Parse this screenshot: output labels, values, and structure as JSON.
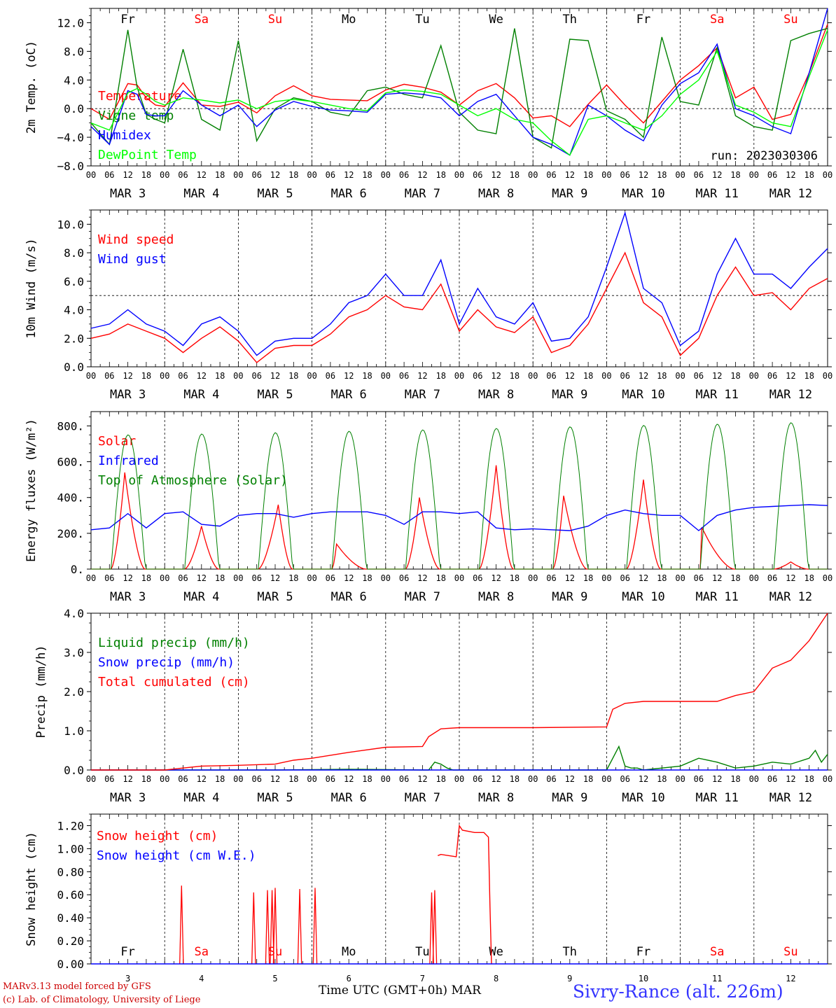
{
  "footer": {
    "credit_line1": "MARv3.13 model forced by GFS",
    "credit_line2": "(c) Lab. of Climatology, University of Liege",
    "xaxis_label": "Time UTC (GMT+0h) MAR",
    "station": "Sivry-Rance (alt. 226m)",
    "colors": {
      "credit": "#cc0000",
      "station": "#3333ff"
    }
  },
  "days": {
    "names": [
      "Fr",
      "Sa",
      "Su",
      "Mo",
      "Tu",
      "We",
      "Th",
      "Fr",
      "Sa",
      "Su"
    ],
    "weekend": [
      false,
      true,
      true,
      false,
      false,
      false,
      false,
      false,
      true,
      true
    ],
    "dates": [
      "MAR  3",
      "MAR  4",
      "MAR  5",
      "MAR  6",
      "MAR  7",
      "MAR  8",
      "MAR  9",
      "MAR 10",
      "MAR 11",
      "MAR 12"
    ],
    "day_numbers": [
      "3",
      "4",
      "5",
      "6",
      "7",
      "8",
      "9",
      "10",
      "11",
      "12"
    ],
    "hour_ticks": [
      "00",
      "06",
      "12",
      "18"
    ],
    "final_tick": "00"
  },
  "chart_data": [
    {
      "type": "line",
      "ylabel": "2m Temp. (oC)",
      "ylim": [
        -8,
        14
      ],
      "yticks": [
        "12.0",
        "8.0",
        "4.0",
        "0.0",
        "−4.0",
        "−8.0"
      ],
      "ytick_values": [
        12,
        8,
        4,
        0,
        -4,
        -8
      ],
      "reference_line": 0,
      "annotation": "run: 2023030306",
      "x_unit": "hours from 2023-03-03 00 UTC",
      "series": [
        {
          "name": "Temperature",
          "color": "#ff0000",
          "x": [
            0,
            6,
            12,
            15,
            18,
            21,
            24,
            30,
            36,
            42,
            48,
            54,
            60,
            66,
            72,
            78,
            84,
            90,
            96,
            102,
            108,
            114,
            120,
            126,
            132,
            138,
            144,
            150,
            156,
            162,
            168,
            174,
            180,
            186,
            192,
            198,
            204,
            210,
            216,
            222,
            228,
            234,
            240
          ],
          "y": [
            0.0,
            -1.5,
            3.5,
            3.3,
            1.5,
            0.5,
            0.3,
            3.6,
            0.5,
            0.3,
            0.9,
            -0.6,
            1.8,
            3.2,
            1.8,
            1.3,
            1.2,
            1.1,
            2.6,
            3.4,
            3.0,
            2.3,
            0.5,
            2.5,
            3.5,
            1.5,
            -1.3,
            -1.0,
            -2.5,
            0.6,
            3.3,
            0.5,
            -2.0,
            1.0,
            4.0,
            6.0,
            8.5,
            1.5,
            3.0,
            -1.5,
            -0.8,
            5.0,
            11.8
          ]
        },
        {
          "name": "Vigne temp",
          "color": "#008000",
          "x": [
            0,
            6,
            12,
            15,
            18,
            21,
            24,
            30,
            36,
            42,
            48,
            54,
            60,
            66,
            72,
            78,
            84,
            90,
            96,
            102,
            108,
            114,
            120,
            126,
            132,
            138,
            144,
            150,
            156,
            162,
            168,
            174,
            180,
            186,
            192,
            198,
            204,
            210,
            216,
            222,
            228,
            234,
            240
          ],
          "y": [
            -2.0,
            -5.0,
            11.0,
            3.0,
            -0.8,
            -1.5,
            -2.0,
            8.3,
            -1.5,
            -3.0,
            9.5,
            -4.5,
            0.0,
            1.5,
            1.0,
            -0.5,
            -1.0,
            2.5,
            3.0,
            2.0,
            1.5,
            8.8,
            -0.5,
            -3.0,
            -3.5,
            11.2,
            -4.0,
            -5.5,
            9.7,
            9.5,
            -0.3,
            -1.5,
            -4.0,
            10.0,
            1.0,
            0.5,
            8.5,
            -1.0,
            -2.5,
            -3.0,
            9.5,
            10.5,
            11.2
          ]
        },
        {
          "name": "Humidex",
          "color": "#0000ff",
          "x": [
            0,
            6,
            12,
            15,
            18,
            21,
            24,
            30,
            36,
            42,
            48,
            54,
            60,
            66,
            72,
            78,
            84,
            90,
            96,
            102,
            108,
            114,
            120,
            126,
            132,
            138,
            144,
            150,
            156,
            162,
            168,
            174,
            180,
            186,
            192,
            198,
            204,
            210,
            216,
            222,
            228,
            234,
            240
          ],
          "y": [
            -2.5,
            -5.0,
            2.5,
            2.0,
            -0.8,
            -1.0,
            -1.0,
            2.5,
            0.5,
            -1.0,
            0.5,
            -2.5,
            -0.2,
            1.0,
            0.3,
            -0.2,
            -0.3,
            -0.5,
            2.0,
            2.2,
            2.0,
            1.5,
            -1.0,
            1.0,
            2.0,
            -1.0,
            -4.0,
            -5.0,
            -6.5,
            0.5,
            -1.0,
            -3.0,
            -4.5,
            0.5,
            3.5,
            5.0,
            9.0,
            0.0,
            -1.0,
            -2.5,
            -3.5,
            5.0,
            14.0
          ]
        },
        {
          "name": "DewPoint Temp",
          "color": "#00ff00",
          "x": [
            0,
            6,
            12,
            15,
            18,
            21,
            24,
            30,
            36,
            42,
            48,
            54,
            60,
            66,
            72,
            78,
            84,
            90,
            96,
            102,
            108,
            114,
            120,
            126,
            132,
            138,
            144,
            150,
            156,
            162,
            168,
            174,
            180,
            186,
            192,
            198,
            204,
            210,
            216,
            222,
            228,
            234,
            240
          ],
          "y": [
            -2.0,
            -3.0,
            2.2,
            2.8,
            2.0,
            1.0,
            0.5,
            1.5,
            1.2,
            0.8,
            1.2,
            0.0,
            1.0,
            1.3,
            1.0,
            0.5,
            0.0,
            -0.3,
            2.2,
            2.6,
            2.4,
            2.0,
            0.5,
            -1.0,
            0.0,
            -1.5,
            -2.0,
            -4.5,
            -6.5,
            -1.5,
            -1.0,
            -2.0,
            -3.0,
            -1.0,
            2.0,
            4.0,
            8.0,
            0.5,
            -0.5,
            -2.0,
            -2.5,
            4.5,
            11.0
          ]
        }
      ]
    },
    {
      "type": "line",
      "ylabel": "10m Wind (m/s)",
      "ylim": [
        0,
        11
      ],
      "yticks": [
        "10.0",
        "8.0",
        "6.0",
        "4.0",
        "2.0",
        "0.0"
      ],
      "ytick_values": [
        10,
        8,
        6,
        4,
        2,
        0
      ],
      "reference_line": 5,
      "x_unit": "hours from 2023-03-03 00 UTC",
      "series": [
        {
          "name": "Wind speed",
          "color": "#ff0000",
          "x": [
            0,
            6,
            12,
            18,
            24,
            30,
            36,
            42,
            48,
            54,
            60,
            66,
            72,
            78,
            84,
            90,
            96,
            102,
            108,
            114,
            120,
            126,
            132,
            138,
            144,
            150,
            156,
            162,
            168,
            174,
            180,
            186,
            192,
            198,
            204,
            210,
            216,
            222,
            228,
            234,
            240
          ],
          "y": [
            2.0,
            2.3,
            3.0,
            2.5,
            2.0,
            1.0,
            2.0,
            2.8,
            1.8,
            0.3,
            1.3,
            1.5,
            1.5,
            2.3,
            3.5,
            4.0,
            5.0,
            4.2,
            4.0,
            5.8,
            2.5,
            4.0,
            2.8,
            2.4,
            3.5,
            1.0,
            1.5,
            3.0,
            5.5,
            8.0,
            4.5,
            3.5,
            0.8,
            2.0,
            5.0,
            7.0,
            5.0,
            5.2,
            4.0,
            5.5,
            6.2
          ]
        },
        {
          "name": "Wind gust",
          "color": "#0000ff",
          "x": [
            0,
            6,
            12,
            18,
            24,
            30,
            36,
            42,
            48,
            54,
            60,
            66,
            72,
            78,
            84,
            90,
            96,
            102,
            108,
            114,
            120,
            126,
            132,
            138,
            144,
            150,
            156,
            162,
            168,
            174,
            180,
            186,
            192,
            198,
            204,
            210,
            216,
            222,
            228,
            234,
            240
          ],
          "y": [
            2.7,
            3.0,
            4.0,
            3.0,
            2.5,
            1.5,
            3.0,
            3.5,
            2.5,
            0.8,
            1.8,
            2.0,
            2.0,
            3.0,
            4.5,
            5.0,
            6.5,
            5.0,
            5.0,
            7.5,
            3.0,
            5.5,
            3.5,
            3.0,
            4.5,
            1.8,
            2.0,
            3.5,
            7.0,
            10.8,
            5.5,
            4.5,
            1.5,
            2.5,
            6.5,
            9.0,
            6.5,
            6.5,
            5.5,
            7.0,
            8.3
          ]
        }
      ]
    },
    {
      "type": "line",
      "ylabel": "Energy fluxes (W/m²)",
      "ylim": [
        0,
        880
      ],
      "yticks": [
        "800.",
        "600.",
        "400.",
        "200.",
        "0."
      ],
      "ytick_values": [
        800,
        600,
        400,
        200,
        0
      ],
      "x_unit": "hours from 2023-03-03 00 UTC",
      "series": [
        {
          "name": "Solar",
          "color": "#ff0000",
          "daily_peak": [
            540,
            240,
            360,
            140,
            400,
            580,
            410,
            500,
            270,
            40
          ],
          "peak_hour": [
            11,
            12,
            13,
            8,
            11,
            12,
            10,
            12,
            6,
            12
          ]
        },
        {
          "name": "Infrared",
          "color": "#0000ff",
          "x": [
            0,
            6,
            12,
            18,
            24,
            30,
            36,
            42,
            48,
            54,
            60,
            66,
            72,
            78,
            84,
            90,
            96,
            102,
            108,
            114,
            120,
            126,
            132,
            138,
            144,
            150,
            156,
            162,
            168,
            174,
            180,
            186,
            192,
            198,
            204,
            210,
            216,
            222,
            228,
            234,
            240
          ],
          "y": [
            220,
            230,
            310,
            230,
            310,
            320,
            250,
            240,
            300,
            310,
            310,
            290,
            310,
            320,
            320,
            320,
            300,
            250,
            320,
            320,
            310,
            320,
            230,
            220,
            225,
            220,
            215,
            240,
            300,
            330,
            310,
            300,
            300,
            215,
            300,
            330,
            345,
            350,
            355,
            360,
            355
          ]
        },
        {
          "name": "Top of Atmosphere (Solar)",
          "color": "#008000",
          "daily_peak": [
            750,
            755,
            762,
            770,
            778,
            786,
            795,
            803,
            810,
            818
          ],
          "sunrise_hour": 6.5,
          "sunset_hour": 17.7
        }
      ]
    },
    {
      "type": "line",
      "ylabel": "Precip (mm/h)",
      "ylim": [
        0,
        4
      ],
      "yticks": [
        "4.0",
        "3.0",
        "2.0",
        "1.0",
        "0.0"
      ],
      "ytick_values": [
        4,
        3,
        2,
        1,
        0
      ],
      "x_unit": "hours from 2023-03-03 00 UTC",
      "series": [
        {
          "name": "Liquid precip (mm/h)",
          "color": "#008000",
          "x": [
            0,
            60,
            84,
            108,
            110,
            112,
            114,
            116,
            118,
            120,
            144,
            168,
            170,
            172,
            174,
            176,
            178,
            180,
            192,
            198,
            204,
            210,
            216,
            222,
            228,
            234,
            236,
            238,
            240
          ],
          "y": [
            0,
            0,
            0.02,
            0,
            0,
            0.2,
            0.15,
            0.05,
            0,
            0,
            0,
            0,
            0.3,
            0.6,
            0.1,
            0.05,
            0.05,
            0,
            0.1,
            0.3,
            0.2,
            0.05,
            0.1,
            0.2,
            0.15,
            0.3,
            0.5,
            0.2,
            0.4
          ]
        },
        {
          "name": "Snow precip (mm/h)",
          "color": "#0000ff",
          "x": [
            0,
            240
          ],
          "y": [
            0,
            0
          ]
        },
        {
          "name": "Total cumulated (cm)",
          "color": "#ff0000",
          "x": [
            0,
            24,
            36,
            48,
            60,
            66,
            72,
            84,
            96,
            108,
            110,
            114,
            120,
            144,
            168,
            170,
            174,
            180,
            192,
            204,
            210,
            216,
            222,
            228,
            234,
            240
          ],
          "y": [
            0,
            0,
            0.1,
            0.12,
            0.15,
            0.25,
            0.3,
            0.45,
            0.58,
            0.6,
            0.85,
            1.05,
            1.08,
            1.08,
            1.1,
            1.55,
            1.7,
            1.75,
            1.75,
            1.75,
            1.9,
            2.0,
            2.6,
            2.8,
            3.3,
            4.0
          ]
        }
      ]
    },
    {
      "type": "line",
      "ylabel": "Snow height (cm)",
      "ylim": [
        0,
        1.3
      ],
      "yticks": [
        "1.20",
        "1.00",
        "0.80",
        "0.60",
        "0.40",
        "0.20",
        "0.00"
      ],
      "ytick_values": [
        1.2,
        1.0,
        0.8,
        0.6,
        0.4,
        0.2,
        0.0
      ],
      "x_unit": "hours from 2023-03-03 00 UTC",
      "series": [
        {
          "name": "Snow height (cm)",
          "color": "#ff0000",
          "spikes": [
            {
              "x": 29.5,
              "y": 0.68
            },
            {
              "x": 53,
              "y": 0.62
            },
            {
              "x": 57.5,
              "y": 0.64
            },
            {
              "x": 59,
              "y": 0.64
            },
            {
              "x": 60,
              "y": 0.66
            },
            {
              "x": 68,
              "y": 0.65
            },
            {
              "x": 73,
              "y": 0.66
            },
            {
              "x": 111,
              "y": 0.62
            },
            {
              "x": 112,
              "y": 0.64
            }
          ],
          "block": {
            "x": [
              113,
              114,
              119,
              120,
              121,
              125,
              128,
              129.5,
              130,
              130.5
            ],
            "y": [
              0.94,
              0.95,
              0.93,
              1.2,
              1.16,
              1.14,
              1.14,
              1.1,
              0.5,
              0
            ]
          }
        },
        {
          "name": "Snow height (cm W.E.)",
          "color": "#0000ff",
          "x": [
            0,
            240
          ],
          "y": [
            0,
            0
          ]
        }
      ]
    }
  ]
}
